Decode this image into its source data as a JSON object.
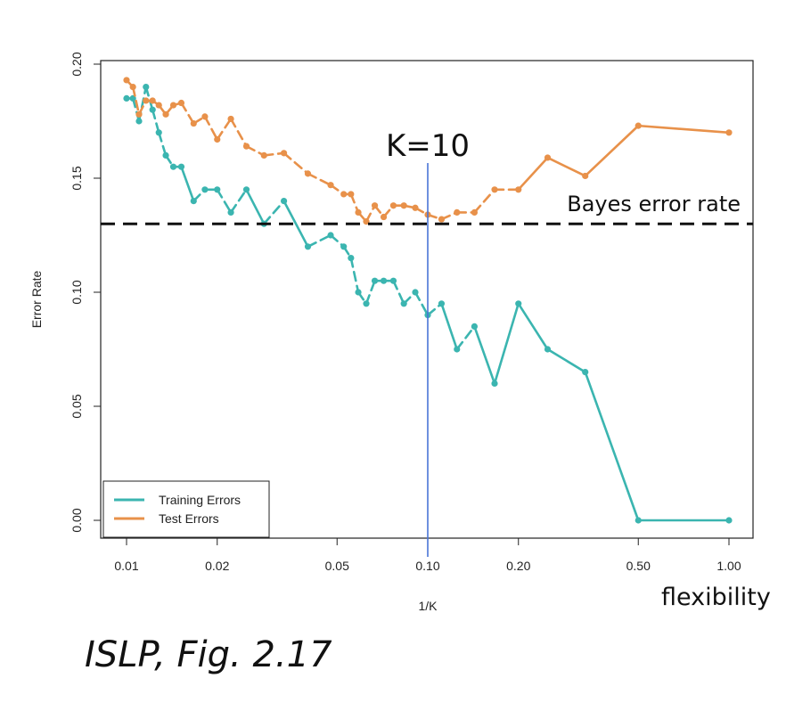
{
  "chart_data": {
    "type": "line",
    "xlabel": "1/K",
    "ylabel": "Error Rate",
    "x_scale": "log",
    "xlim": [
      0.01,
      1.0
    ],
    "ylim": [
      0,
      0.2
    ],
    "x_ticks": [
      0.01,
      0.02,
      0.05,
      0.1,
      0.2,
      0.5,
      1.0
    ],
    "x_tick_labels": [
      "0.01",
      "0.02",
      "0.05",
      "0.10",
      "0.20",
      "0.50",
      "1.00"
    ],
    "y_ticks": [
      0,
      0.05,
      0.1,
      0.15,
      0.2
    ],
    "y_tick_labels": [
      "0.00",
      "0.05",
      "0.10",
      "0.15",
      "0.20"
    ],
    "legend_position": "bottom-left",
    "series": [
      {
        "name": "Training Errors",
        "color": "#3bb5b0",
        "x": [
          0.01,
          0.0105,
          0.011,
          0.0116,
          0.0122,
          0.0128,
          0.0135,
          0.0143,
          0.0152,
          0.0167,
          0.0182,
          0.02,
          0.0222,
          0.025,
          0.0286,
          0.0333,
          0.04,
          0.0476,
          0.0526,
          0.0556,
          0.0588,
          0.0625,
          0.0667,
          0.0714,
          0.0769,
          0.0833,
          0.0909,
          0.1,
          0.1111,
          0.125,
          0.1429,
          0.1667,
          0.2,
          0.25,
          0.3333,
          0.5,
          1.0
        ],
        "y": [
          0.185,
          0.185,
          0.175,
          0.19,
          0.18,
          0.17,
          0.16,
          0.155,
          0.155,
          0.14,
          0.145,
          0.145,
          0.135,
          0.145,
          0.13,
          0.14,
          0.12,
          0.125,
          0.12,
          0.115,
          0.1,
          0.095,
          0.105,
          0.105,
          0.105,
          0.095,
          0.1,
          0.09,
          0.095,
          0.075,
          0.085,
          0.06,
          0.095,
          0.075,
          0.065,
          0.0,
          0.0
        ],
        "x_actual": [
          0.01,
          0.0105,
          0.011,
          0.0116,
          0.0122,
          0.0128,
          0.0135,
          0.0143,
          0.0152,
          0.0167,
          0.0182,
          0.02,
          0.0222,
          0.025,
          0.0286,
          0.0333,
          0.04,
          0.0476,
          0.0526,
          0.0556,
          0.0588,
          0.0625,
          0.0667,
          0.0714,
          0.0769,
          0.0833,
          0.0909,
          0.1,
          0.1111,
          0.125,
          0.1429,
          0.1667,
          0.2,
          0.25,
          0.3333,
          0.5,
          1.0
        ]
      },
      {
        "name": "Test Errors",
        "color": "#e8914a",
        "x": [
          0.01,
          0.0105,
          0.011,
          0.0116,
          0.0122,
          0.0128,
          0.0135,
          0.0143,
          0.0152,
          0.0167,
          0.0182,
          0.02,
          0.0222,
          0.025,
          0.0286,
          0.0333,
          0.04,
          0.0476,
          0.0526,
          0.0556,
          0.0588,
          0.0625,
          0.0667,
          0.0714,
          0.0769,
          0.0833,
          0.0909,
          0.1,
          0.1111,
          0.125,
          0.1429,
          0.1667,
          0.2,
          0.25,
          0.3333,
          0.5,
          1.0
        ],
        "y": [
          0.193,
          0.19,
          0.178,
          0.184,
          0.184,
          0.182,
          0.178,
          0.182,
          0.183,
          0.174,
          0.177,
          0.167,
          0.176,
          0.164,
          0.16,
          0.161,
          0.152,
          0.147,
          0.143,
          0.143,
          0.135,
          0.131,
          0.138,
          0.133,
          0.138,
          0.138,
          0.137,
          0.134,
          0.132,
          0.135,
          0.135,
          0.145,
          0.145,
          0.159,
          0.151,
          0.173,
          0.17
        ]
      }
    ],
    "reference_lines": [
      {
        "orientation": "horizontal",
        "value": 0.13,
        "label": "Bayes error rate",
        "style": "dashed",
        "color": "#111111"
      },
      {
        "orientation": "vertical",
        "value": 0.1,
        "label": "K=10",
        "style": "solid",
        "color": "#4a74d6"
      }
    ]
  },
  "annotations": {
    "caption": "ISLP, Fig. 2.17",
    "flexibility": "flexibility"
  }
}
